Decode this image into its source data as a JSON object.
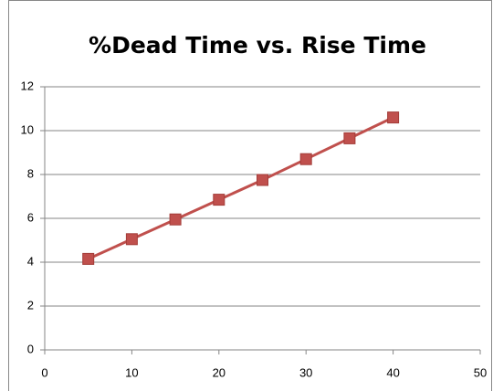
{
  "chart_data": {
    "type": "line",
    "title": "%Dead Time vs. Rise Time",
    "x": [
      5,
      10,
      15,
      20,
      25,
      30,
      35,
      40
    ],
    "series": [
      {
        "name": "%Dead Time",
        "color": "#c0504d",
        "values": [
          4.15,
          5.05,
          5.95,
          6.85,
          7.75,
          8.7,
          9.65,
          10.6
        ]
      }
    ],
    "xlim": [
      0,
      50
    ],
    "xticks": [
      0,
      10,
      20,
      30,
      40,
      50
    ],
    "ylim": [
      0,
      12
    ],
    "yticks": [
      0,
      2,
      4,
      6,
      8,
      10,
      12
    ],
    "grid": true
  }
}
